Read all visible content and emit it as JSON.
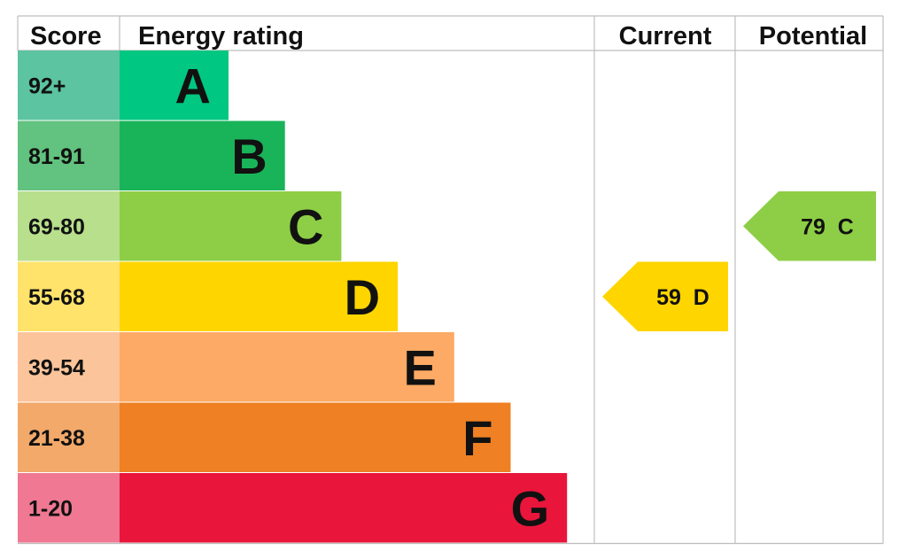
{
  "headers": {
    "score": "Score",
    "energy_rating": "Energy rating",
    "current": "Current",
    "potential": "Potential"
  },
  "chart_data": {
    "type": "bar",
    "title": "",
    "categories": [
      "A",
      "B",
      "C",
      "D",
      "E",
      "F",
      "G"
    ],
    "score_ranges": [
      "92+",
      "81-91",
      "69-80",
      "55-68",
      "39-54",
      "21-38",
      "1-20"
    ],
    "band_colors": [
      "#00c781",
      "#19b459",
      "#8dce46",
      "#ffd500",
      "#fcaa65",
      "#ef8023",
      "#e9153b"
    ],
    "score_cell_colors": [
      "#5cc4a0",
      "#62c27f",
      "#b7df8c",
      "#ffe36b",
      "#fcc49a",
      "#f2a96a",
      "#f07892"
    ],
    "current": {
      "value": 59,
      "band": "D",
      "label": "59  D",
      "color": "#ffd500"
    },
    "potential": {
      "value": 79,
      "band": "C",
      "label": "79  C",
      "color": "#8dce46"
    }
  }
}
